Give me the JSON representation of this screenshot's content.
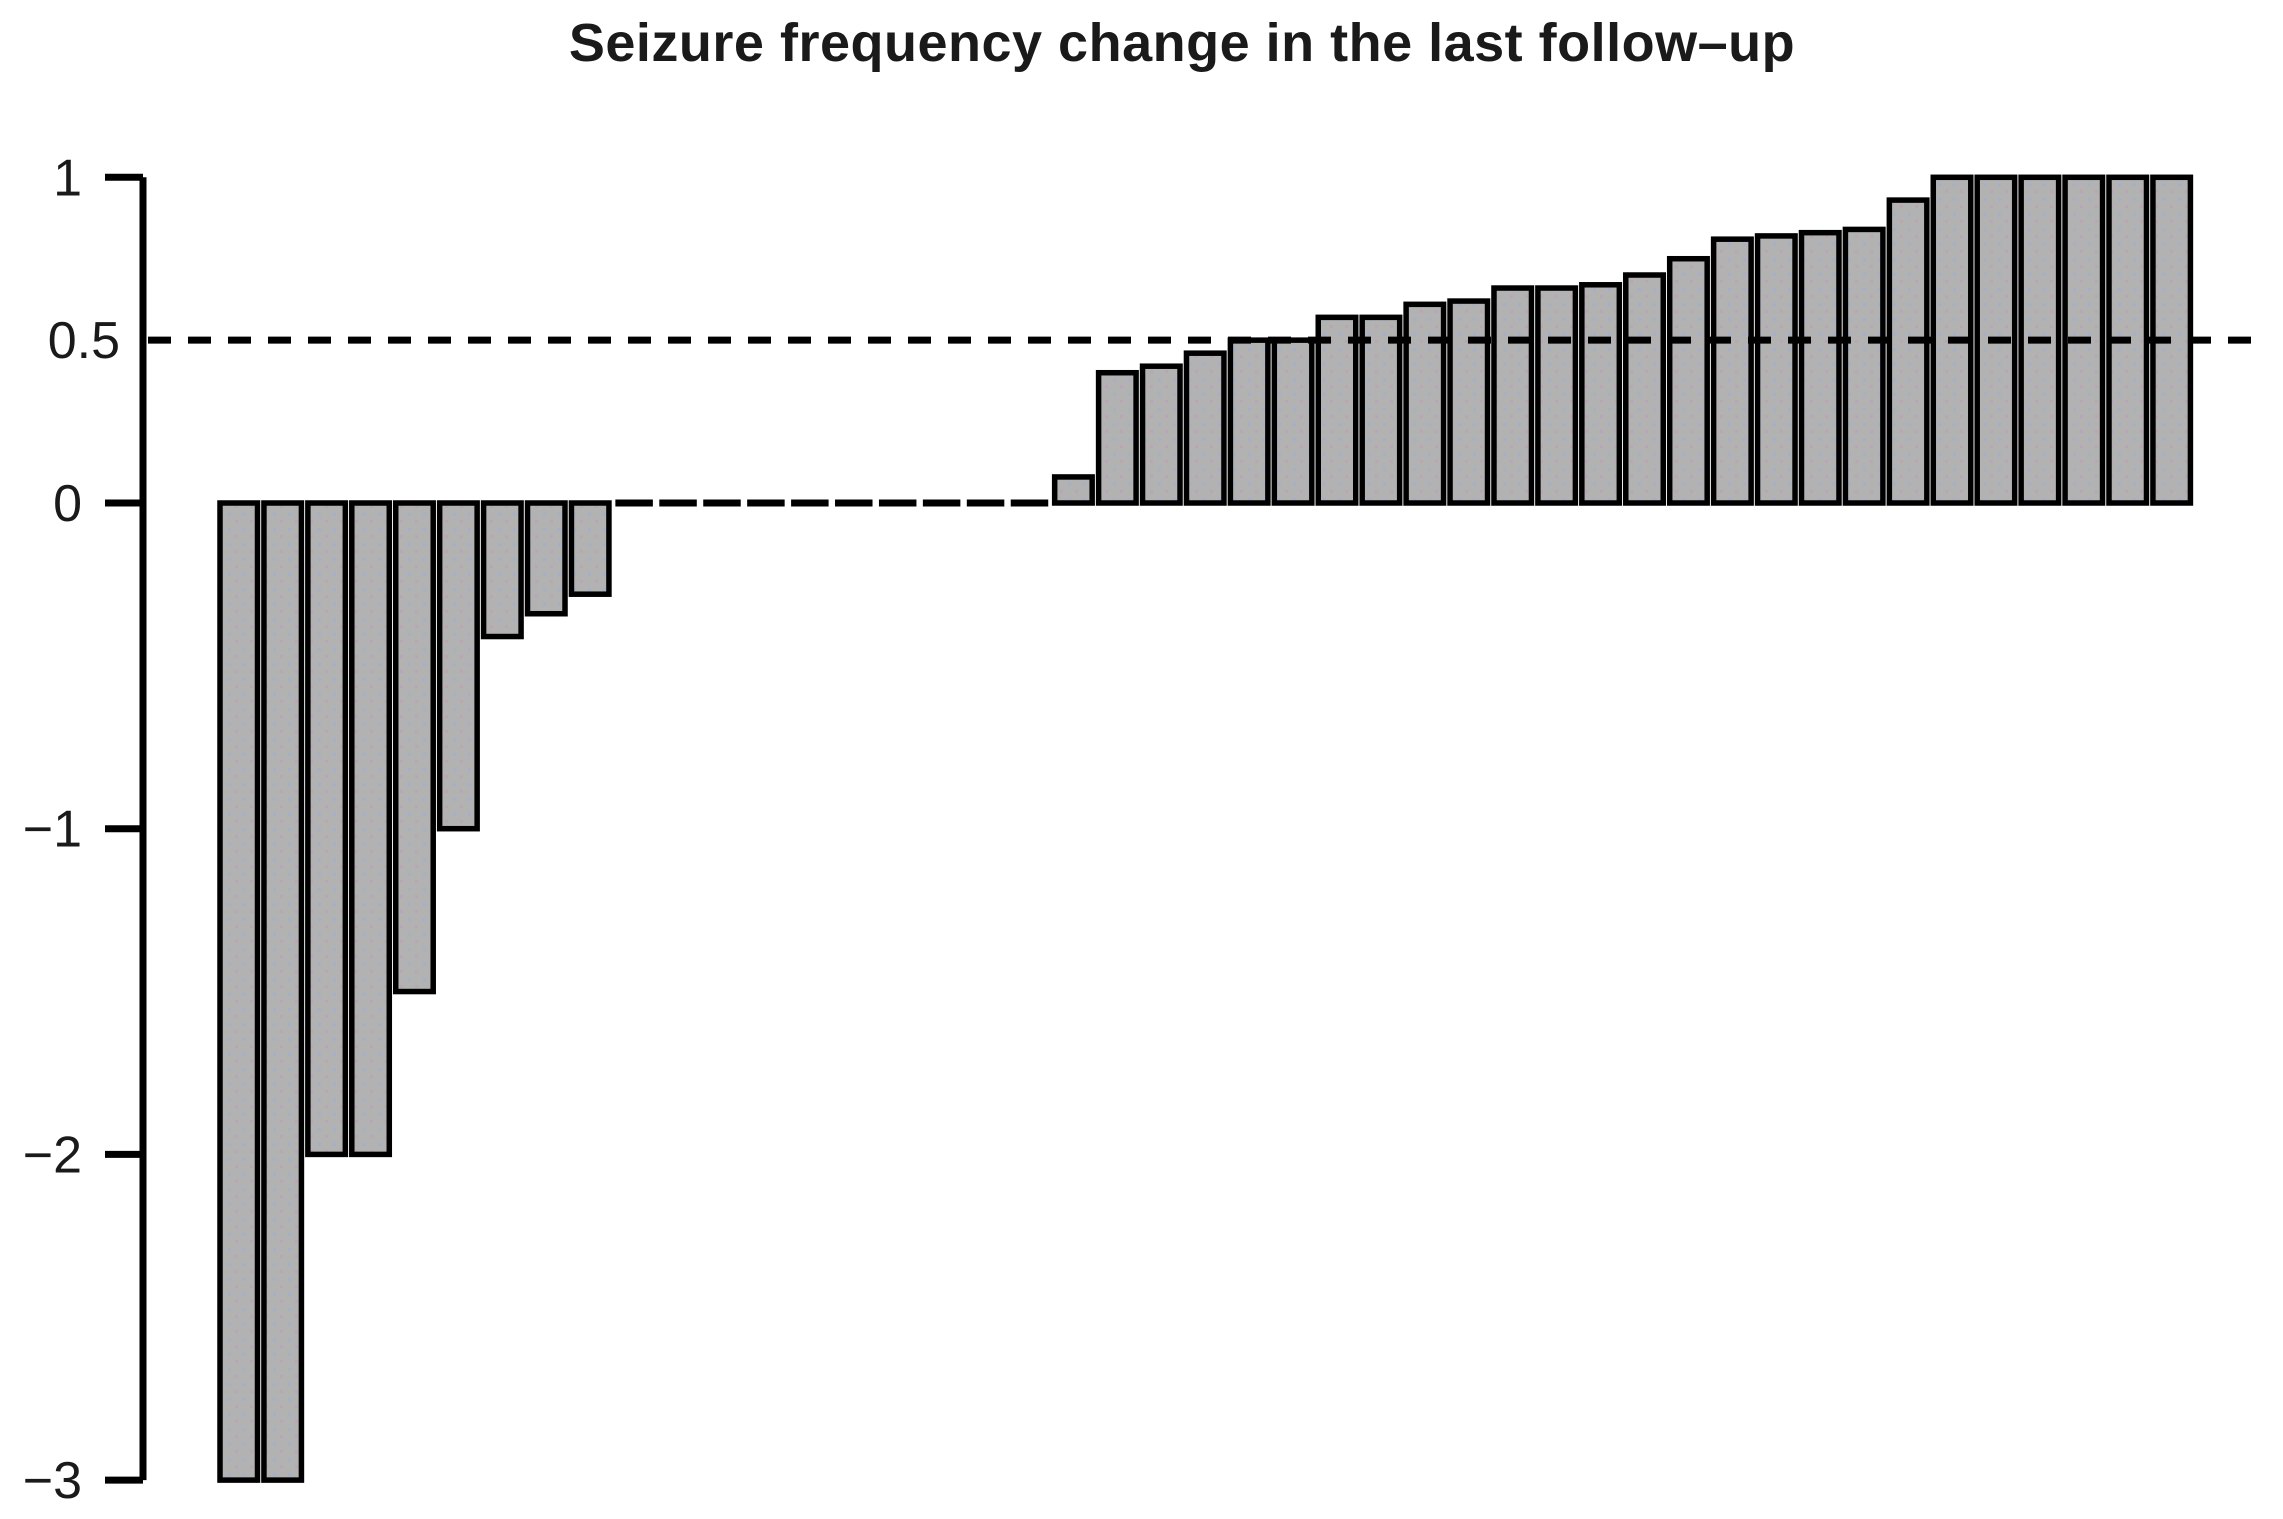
{
  "chart_data": {
    "type": "bar",
    "subtype": "waterfall",
    "title": "Seizure frequency change in the last follow–up",
    "xlabel": "",
    "ylabel": "",
    "ylim": [
      -3,
      1
    ],
    "grid": false,
    "legend": false,
    "n_bars": 45,
    "values": [
      -3,
      -3,
      -2,
      -2,
      -1.5,
      -1,
      -0.41,
      -0.34,
      -0.28,
      0,
      0,
      0,
      0,
      0,
      0,
      0,
      0,
      0,
      0,
      0.08,
      0.4,
      0.42,
      0.46,
      0.5,
      0.5,
      0.57,
      0.57,
      0.61,
      0.62,
      0.66,
      0.66,
      0.67,
      0.7,
      0.75,
      0.81,
      0.82,
      0.83,
      0.84,
      0.93,
      1,
      1,
      1,
      1,
      1,
      1
    ],
    "yticks": {
      "values": [
        1,
        0,
        -1,
        -2,
        -3
      ],
      "labels": [
        "1",
        "0",
        "−1",
        "−2",
        "−3"
      ]
    },
    "reference_line": {
      "value": 0.5,
      "label": "0.5",
      "style": "dotted"
    },
    "colors": {
      "bar_fill": "#b2b2b2",
      "bar_border": "#000000",
      "axis": "#000000",
      "reference_line": "#000000",
      "background": "#ffffff",
      "speckle_blue": "#9fafd0",
      "speckle_pink": "#c299b4"
    }
  }
}
